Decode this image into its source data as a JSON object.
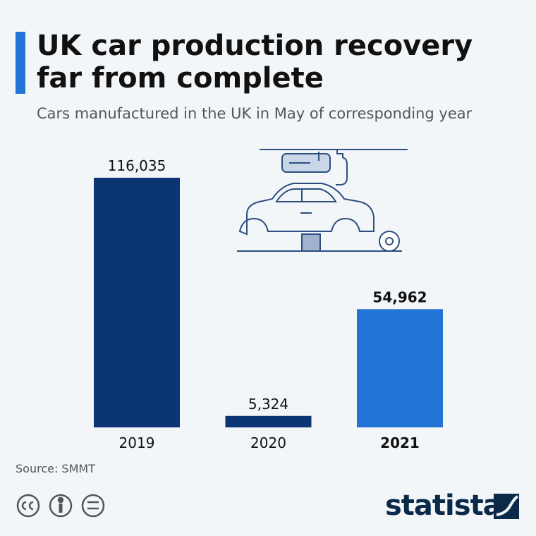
{
  "chart_data": {
    "type": "bar",
    "title": "UK car production recovery far from complete",
    "subtitle": "Cars manufactured in the UK in May of corresponding year",
    "categories": [
      "2019",
      "2020",
      "2021"
    ],
    "values": [
      116035,
      5324,
      54962
    ],
    "value_labels": [
      "116,035",
      "5,324",
      "54,962"
    ],
    "colors": [
      "#0b3573",
      "#0b3573",
      "#2274d6"
    ],
    "bold": [
      false,
      false,
      true
    ],
    "source": "Source: SMMT",
    "brand": "statista"
  }
}
